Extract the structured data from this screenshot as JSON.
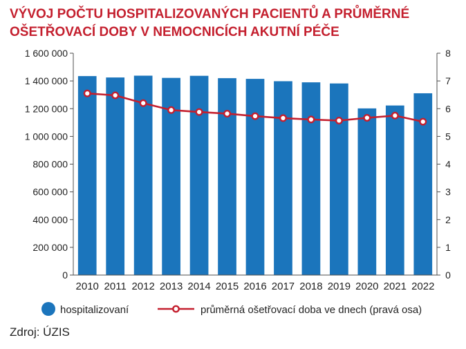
{
  "chart_data": {
    "type": "bar",
    "title_lines": [
      "VÝVOJ POČTU HOSPITALIZOVANÝCH PACIENTŮ A PRŮMĚRNÉ",
      "OŠETŘOVACÍ DOBY V NEMOCNICÍCH AKUTNÍ PÉČE"
    ],
    "categories": [
      "2010",
      "2011",
      "2012",
      "2013",
      "2014",
      "2015",
      "2016",
      "2017",
      "2018",
      "2019",
      "2020",
      "2021",
      "2022"
    ],
    "series": [
      {
        "name": "hospitalizovaní",
        "type": "bar",
        "axis": "left",
        "color": "#1b75bc",
        "values": [
          1435000,
          1425000,
          1438000,
          1422000,
          1437000,
          1420000,
          1415000,
          1398000,
          1390000,
          1382000,
          1202000,
          1223000,
          1311000
        ]
      },
      {
        "name": "průměrná ošetřovací doba ve dnech (pravá osa)",
        "type": "line",
        "axis": "right",
        "color": "#c41f2e",
        "values": [
          6.55,
          6.48,
          6.2,
          5.95,
          5.88,
          5.82,
          5.73,
          5.66,
          5.61,
          5.57,
          5.67,
          5.75,
          5.53
        ]
      }
    ],
    "y_left": {
      "ylim": [
        0,
        1600000
      ],
      "ticks": [
        "0",
        "200 000",
        "400 000",
        "600 000",
        "800 000",
        "1 000 000",
        "1 200 000",
        "1 400 000",
        "1 600 000"
      ]
    },
    "y_right": {
      "ylim": [
        0,
        8
      ],
      "ticks": [
        "0",
        "1",
        "2",
        "3",
        "4",
        "5",
        "6",
        "7",
        "8"
      ]
    },
    "grid": false,
    "legend_position": "bottom",
    "title_color": "#c41f2e",
    "source": "Zdroj: ÚZIS"
  }
}
